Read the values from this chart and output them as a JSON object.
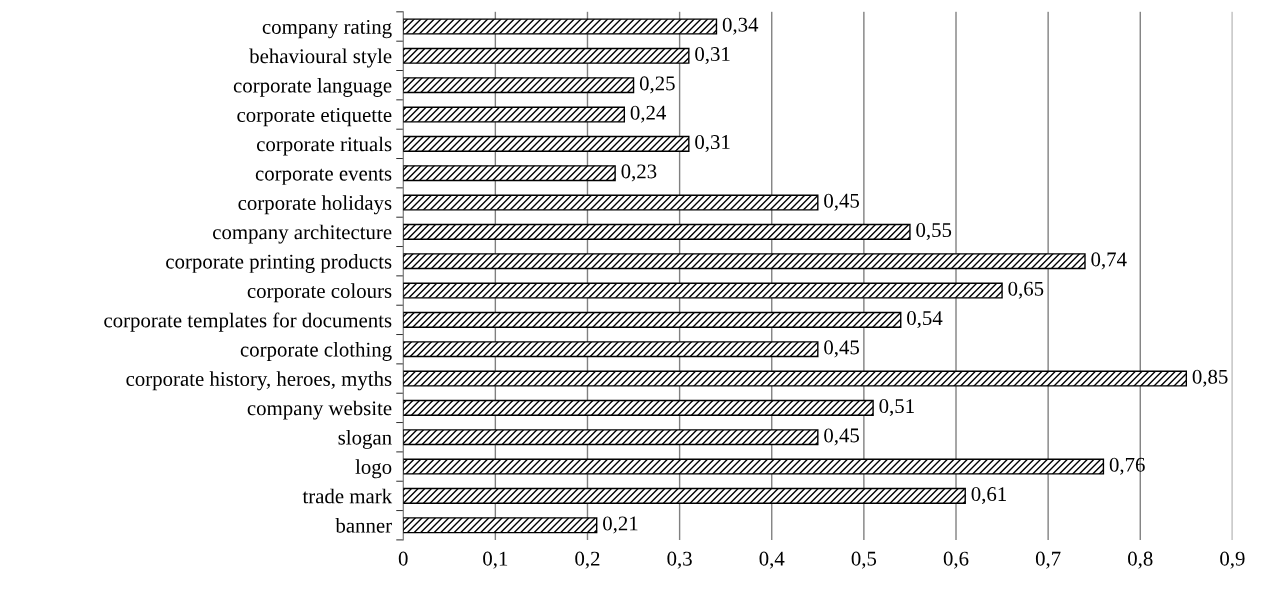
{
  "chart_data": {
    "type": "bar",
    "orientation": "horizontal",
    "categories": [
      "company rating",
      "behavioural style",
      "corporate language",
      "corporate etiquette",
      "corporate rituals",
      "corporate events",
      "corporate holidays",
      "company architecture",
      "corporate printing products",
      "corporate colours",
      "corporate templates for documents",
      "corporate clothing",
      "corporate history, heroes, myths",
      "company website",
      "slogan",
      "logo",
      "trade mark",
      "banner"
    ],
    "series": [
      {
        "color": "#000000",
        "values": [
          0.34,
          0.31,
          0.25,
          0.24,
          0.31,
          0.23,
          0.45,
          0.55,
          0.74,
          0.65,
          0.54,
          0.45,
          0.85,
          0.51,
          0.45,
          0.76,
          0.61,
          0.21
        ],
        "value_labels": [
          "0,34",
          "0,31",
          "0,25",
          "0,24",
          "0,31",
          "0,23",
          "0,45",
          "0,55",
          "0,74",
          "0,65",
          "0,54",
          "0,45",
          "0,85",
          "0,51",
          "0,45",
          "0,76",
          "0,61",
          "0,21"
        ]
      }
    ],
    "xlim": [
      0,
      0.9
    ],
    "xticks": [
      0,
      {
        "value": 0.1,
        "label": "0,1"
      },
      {
        "value": 0.2,
        "label": "0,2"
      },
      {
        "value": 0.3,
        "label": "0,3"
      },
      {
        "value": 0.4,
        "label": "0,4"
      },
      {
        "value": 0.5,
        "label": "0,5"
      },
      {
        "value": 0.6,
        "label": "0,6"
      },
      {
        "value": 0.7,
        "label": "0,7"
      },
      {
        "value": 0.8,
        "label": "0,8"
      },
      {
        "value": 0.9,
        "label": "0,9"
      }
    ],
    "grid": "x",
    "legend": false
  }
}
